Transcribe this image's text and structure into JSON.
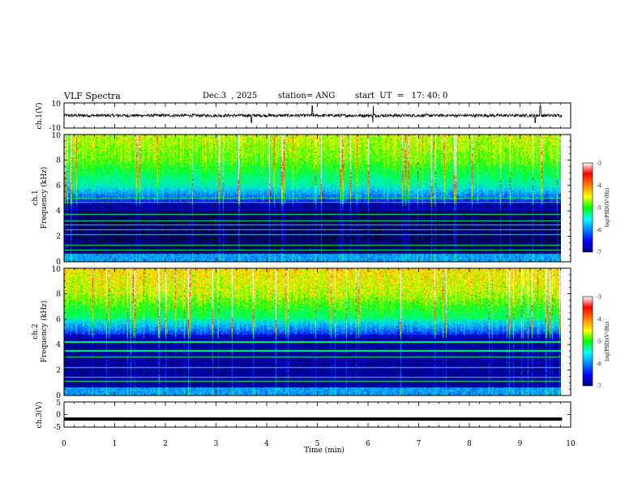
{
  "header": {
    "title": "VLF Spectra",
    "date": "Dec.3  , 2025",
    "station": "station= ANG",
    "start_ut": "start  UT  =   17: 40: 0"
  },
  "colors": {
    "ramp": [
      "#000000",
      "#000080",
      "#0000ff",
      "#00ffff",
      "#00ff00",
      "#ffff00",
      "#ff8000",
      "#ff0000",
      "#ffffff"
    ],
    "waveform": "#000000",
    "axis": "#000000"
  },
  "chart_data": [
    {
      "type": "line",
      "panel": "ch1-waveform",
      "ylabel": "ch.1(V)",
      "ylim": [
        -10,
        10
      ],
      "yticks": [
        10,
        -10
      ],
      "xlim": [
        0,
        10
      ],
      "baseline": 0,
      "description_values": {
        "noise_amplitude_V": 1.0,
        "spike_times_min": [
          3.7,
          4.9,
          6.1,
          9.3,
          9.4
        ]
      }
    },
    {
      "type": "heatmap",
      "panel": "ch1-spectrogram",
      "ylabel": "ch.1\nFrequency (kHz)",
      "ylim": [
        0,
        10
      ],
      "yticks": [
        0,
        2,
        4,
        6,
        8,
        10
      ],
      "xlim": [
        0,
        10
      ],
      "colorbar": {
        "label": "log(PSD)(V²/Hz)",
        "range": [
          -7,
          -3
        ],
        "ticks": [
          -3,
          -4,
          -5,
          -6,
          -7
        ]
      }
    },
    {
      "type": "heatmap",
      "panel": "ch2-spectrogram",
      "ylabel": "ch.2\nFrequency (kHz)",
      "ylim": [
        0,
        10
      ],
      "yticks": [
        0,
        2,
        4,
        6,
        8,
        10
      ],
      "xlim": [
        0,
        10
      ],
      "colorbar": {
        "label": "log(PSD)(V²/Hz)",
        "range": [
          -7,
          -3
        ],
        "ticks": [
          -3,
          -4,
          -5,
          -6,
          -7
        ]
      }
    },
    {
      "type": "line",
      "panel": "ch3-waveform",
      "ylabel": "ch.3(V)",
      "ylim": [
        -5,
        5
      ],
      "yticks": [
        5,
        0,
        -5
      ],
      "xlim": [
        0,
        10
      ],
      "baseline": -1.8
    }
  ],
  "xaxis": {
    "label": "Time (min)",
    "ticks": [
      0,
      1,
      2,
      3,
      4,
      5,
      6,
      7,
      8,
      9,
      10
    ],
    "range": [
      0,
      10
    ],
    "data_end_min": 9.83
  },
  "ylabels": {
    "ch1_wave": "ch.1(V)",
    "ch1_spec_line1": "ch.1",
    "ch1_spec_line2": "Frequency (kHz)",
    "ch2_spec_line1": "ch.2",
    "ch2_spec_line2": "Frequency (kHz)",
    "ch3_wave": "ch.3(V)"
  },
  "colorbar_label": "log(PSD)(V²/Hz)"
}
